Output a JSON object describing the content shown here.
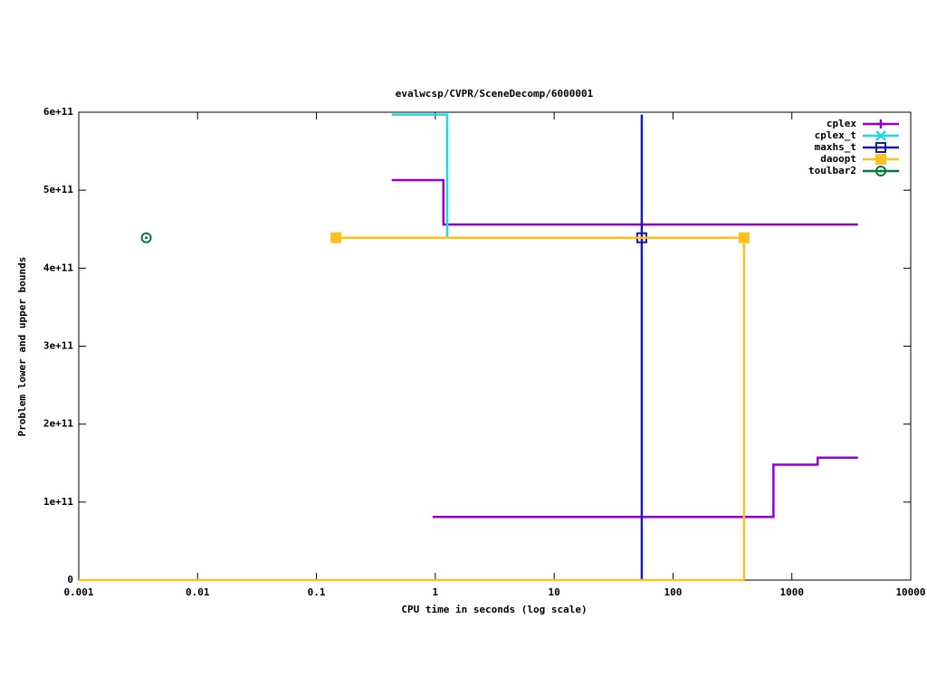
{
  "chart_data": {
    "type": "line",
    "title": "evalwcsp/CVPR/SceneDecomp/6000001",
    "x_label": "CPU time in seconds (log scale)",
    "y_label": "Problem lower and upper bounds",
    "x_log": true,
    "xlim": [
      0.001,
      10000
    ],
    "xticks": [
      0.001,
      0.01,
      0.1,
      1,
      10,
      100,
      1000,
      10000
    ],
    "ylim": [
      0,
      600000000000
    ],
    "yticks": [
      0,
      {
        "value": 100000000000,
        "label": "1e+11"
      },
      {
        "value": 200000000000,
        "label": "2e+11"
      },
      {
        "value": 300000000000,
        "label": "3e+11"
      },
      {
        "value": 400000000000,
        "label": "4e+11"
      },
      {
        "value": 500000000000,
        "label": "5e+11"
      },
      {
        "value": 600000000000,
        "label": "6e+11"
      }
    ],
    "legend": "top-right",
    "series": [
      {
        "name": "cplex",
        "color": "#9400d3",
        "marker": "plus",
        "x": [
          0.43,
          1.17,
          1.17,
          3600,
          null,
          0.95,
          700,
          700,
          1650,
          1650,
          3600
        ],
        "values": [
          513000000000,
          513000000000,
          456000000000,
          456000000000,
          null,
          81000000000,
          81000000000,
          148000000000,
          148000000000,
          157000000000,
          157000000000
        ]
      },
      {
        "name": "cplex_t",
        "color": "#20d8e0",
        "marker": "x",
        "x": [
          0.43,
          1.26,
          1.26
        ],
        "values": [
          597000000000,
          597000000000,
          439000000000
        ]
      },
      {
        "name": "maxhs_t",
        "color": "#1a1aa8",
        "marker": "square",
        "x": [
          54.6,
          54.6
        ],
        "values": [
          597000000000,
          0
        ],
        "points": {
          "x": [
            54.6
          ],
          "values": [
            439000000000
          ]
        }
      },
      {
        "name": "daoopt",
        "color": "#ffc020",
        "marker": "filled-square",
        "x": [
          0.146,
          396,
          396,
          null,
          0.001,
          396
        ],
        "values": [
          439000000000,
          439000000000,
          0,
          null,
          0,
          0
        ],
        "points": {
          "x": [
            0.146,
            396
          ],
          "values": [
            439000000000,
            439000000000
          ]
        }
      },
      {
        "name": "toulbar2",
        "color": "#007a40",
        "marker": "circle",
        "x": [],
        "values": [],
        "points": {
          "x": [
            0.0037
          ],
          "values": [
            439000000000
          ]
        }
      }
    ]
  }
}
